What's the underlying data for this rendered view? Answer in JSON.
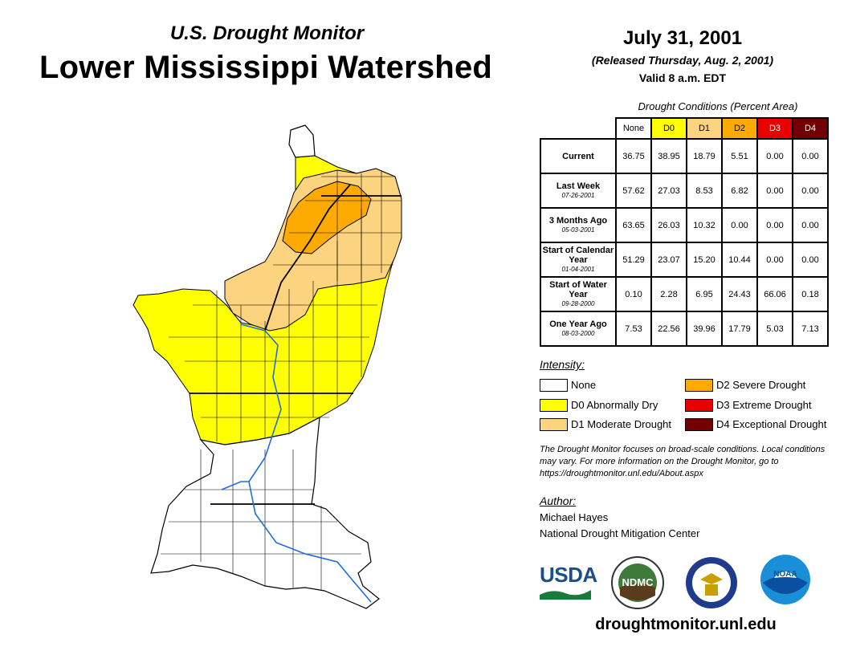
{
  "header": {
    "subtitle": "U.S. Drought Monitor",
    "title": "Lower Mississippi Watershed",
    "date": "July 31, 2001",
    "released": "(Released Thursday, Aug. 2, 2001)",
    "valid": "Valid 8 a.m. EDT"
  },
  "table": {
    "title": "Drought Conditions (Percent Area)",
    "columns": [
      "None",
      "D0",
      "D1",
      "D2",
      "D3",
      "D4"
    ],
    "rows": [
      {
        "label": "Current",
        "date": "",
        "values": [
          "36.75",
          "38.95",
          "18.79",
          "5.51",
          "0.00",
          "0.00"
        ]
      },
      {
        "label": "Last Week",
        "date": "07-26-2001",
        "values": [
          "57.62",
          "27.03",
          "8.53",
          "6.82",
          "0.00",
          "0.00"
        ]
      },
      {
        "label": "3 Months Ago",
        "date": "05-03-2001",
        "values": [
          "63.65",
          "26.03",
          "10.32",
          "0.00",
          "0.00",
          "0.00"
        ]
      },
      {
        "label": "Start of Calendar Year",
        "date": "01-04-2001",
        "values": [
          "51.29",
          "23.07",
          "15.20",
          "10.44",
          "0.00",
          "0.00"
        ]
      },
      {
        "label": "Start of Water Year",
        "date": "09-28-2000",
        "values": [
          "0.10",
          "2.28",
          "6.95",
          "24.43",
          "66.06",
          "0.18"
        ]
      },
      {
        "label": "One Year Ago",
        "date": "08-03-2000",
        "values": [
          "7.53",
          "22.56",
          "39.96",
          "17.79",
          "5.03",
          "7.13"
        ]
      }
    ]
  },
  "legend": {
    "title": "Intensity:",
    "items": [
      {
        "label": "None",
        "color": "#ffffff"
      },
      {
        "label": "D0 Abnormally Dry",
        "color": "#ffff00"
      },
      {
        "label": "D1 Moderate Drought",
        "color": "#fcd37f"
      },
      {
        "label": "D2 Severe Drought",
        "color": "#ffaa00"
      },
      {
        "label": "D3 Extreme Drought",
        "color": "#e60000"
      },
      {
        "label": "D4 Exceptional Drought",
        "color": "#730000"
      }
    ]
  },
  "note": "The Drought Monitor focuses on broad-scale conditions. Local conditions may vary. For more information on the Drought Monitor, go to https://droughtmonitor.unl.edu/About.aspx",
  "author": {
    "title": "Author:",
    "name": "Michael Hayes",
    "org": "National Drought Mitigation Center"
  },
  "logos": {
    "usda": "USDA",
    "ndmc": "NDMC",
    "noaa": "NOAA"
  },
  "website": "droughtmonitor.unl.edu"
}
